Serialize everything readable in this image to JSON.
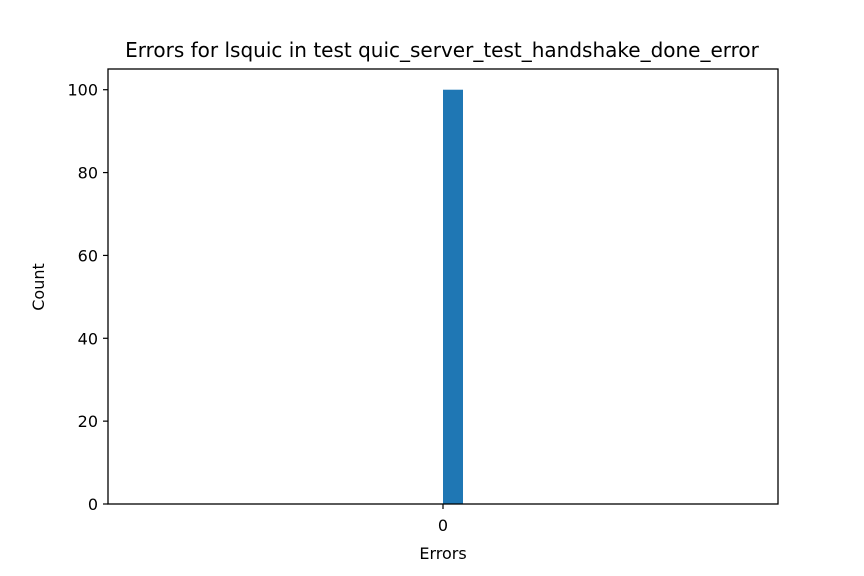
{
  "chart_data": {
    "type": "bar",
    "title": "Errors for lsquic in test quic_server_test_handshake_done_error",
    "xlabel": "Errors",
    "ylabel": "Count",
    "categories": [
      "0"
    ],
    "values": [
      100
    ],
    "ylim": [
      0,
      105
    ],
    "yticks": [
      0,
      20,
      40,
      60,
      80,
      100
    ],
    "xticks": [
      "0"
    ],
    "grid": false,
    "legend": "none",
    "bar_color": "#1f77b4"
  }
}
